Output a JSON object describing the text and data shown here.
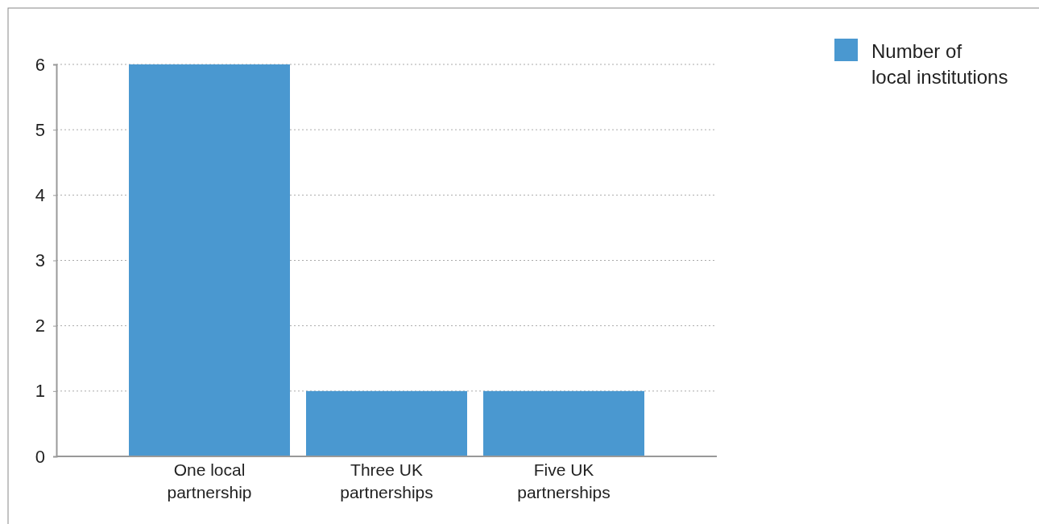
{
  "chart_data": {
    "type": "bar",
    "categories": [
      "One local partnership",
      "Three UK partnerships",
      "Five UK partnerships"
    ],
    "series": [
      {
        "name": "Number of local institutions",
        "color": "#4a98d0",
        "values": [
          6,
          1,
          1
        ]
      }
    ],
    "ylim": [
      0,
      6
    ],
    "yticks": [
      0,
      1,
      2,
      3,
      4,
      5,
      6
    ],
    "grid": "y",
    "legend": "top right"
  }
}
